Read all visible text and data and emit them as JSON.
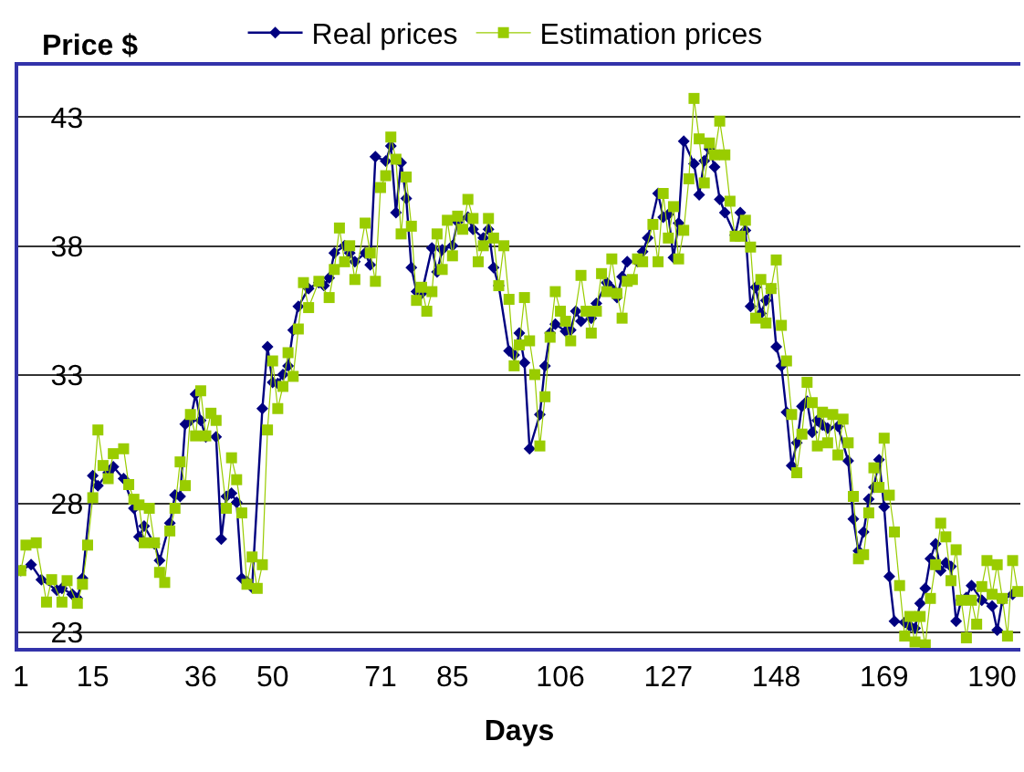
{
  "chart_data": {
    "type": "line",
    "xlabel": "Days",
    "ylabel": "Price $",
    "xlim": [
      0.5,
      195.5
    ],
    "xticks": [
      1,
      15,
      36,
      50,
      71,
      85,
      106,
      127,
      148,
      169,
      190
    ],
    "ylim": [
      22.4,
      45
    ],
    "yticks": [
      23,
      28,
      33,
      38,
      43
    ],
    "grid": "y",
    "legend": "top",
    "series": [
      {
        "name": "Real prices",
        "color": "#000080",
        "marker": "diamond",
        "x": [
          1,
          3,
          5,
          8,
          9,
          11,
          12,
          13,
          15,
          16,
          18,
          19,
          21,
          23,
          24,
          25,
          27,
          28,
          30,
          31,
          32,
          33,
          34,
          35,
          36,
          37,
          39,
          40,
          41,
          42,
          43,
          44,
          45,
          46,
          48,
          49,
          50,
          51,
          52,
          53,
          54,
          55,
          57,
          59,
          60,
          61,
          62,
          64,
          65,
          66,
          68,
          69,
          70,
          72,
          73,
          74,
          75,
          76,
          77,
          78,
          79,
          81,
          82,
          83,
          85,
          86,
          88,
          89,
          91,
          92,
          93,
          94,
          96,
          97,
          98,
          99,
          100,
          102,
          103,
          104,
          105,
          107,
          108,
          109,
          110,
          112,
          113,
          115,
          116,
          117,
          118,
          119,
          121,
          122,
          123,
          125,
          126,
          127,
          128,
          129,
          130,
          132,
          133,
          134,
          135,
          136,
          137,
          138,
          140,
          141,
          142,
          143,
          144,
          145,
          146,
          147,
          148,
          149,
          150,
          151,
          152,
          153,
          154,
          155,
          156,
          157,
          158,
          160,
          162,
          163,
          164,
          165,
          166,
          167,
          168,
          169,
          170,
          171,
          173,
          174,
          175,
          176,
          177,
          178,
          179,
          180,
          181,
          182,
          183,
          184,
          185,
          186,
          188,
          190,
          191,
          192,
          194
        ],
        "values": [
          25.4,
          25.63,
          25.05,
          24.64,
          24.71,
          24.48,
          24.32,
          25.1,
          29.09,
          28.7,
          29.2,
          29.43,
          28.97,
          27.82,
          26.71,
          27.13,
          26.44,
          25.79,
          27.24,
          28.33,
          28.28,
          31.09,
          31.23,
          32.25,
          31.23,
          30.59,
          30.59,
          26.62,
          28.28,
          28.4,
          28.05,
          25.1,
          24.98,
          24.75,
          31.69,
          34.09,
          32.71,
          32.66,
          33.01,
          33.35,
          34.74,
          35.66,
          36.35,
          36.58,
          36.46,
          36.76,
          37.73,
          38.01,
          37.73,
          37.39,
          37.73,
          37.27,
          41.47,
          41.3,
          41.88,
          39.3,
          41.24,
          39.85,
          37.16,
          36.23,
          36.16,
          37.92,
          36.99,
          37.85,
          38.01,
          38.93,
          39.12,
          38.65,
          38.31,
          38.65,
          37.16,
          36.46,
          33.93,
          33.77,
          34.62,
          33.47,
          30.13,
          31.46,
          33.35,
          34.62,
          34.97,
          34.69,
          34.74,
          35.47,
          35.08,
          35.2,
          35.77,
          36.58,
          36.35,
          36.0,
          36.81,
          37.39,
          37.39,
          37.78,
          38.31,
          40.04,
          39.12,
          39.23,
          37.55,
          38.89,
          42.07,
          41.19,
          39.99,
          41.31,
          41.77,
          41.07,
          39.81,
          39.3,
          38.42,
          39.3,
          38.61,
          35.66,
          36.4,
          35.38,
          35.89,
          36.35,
          34.09,
          33.35,
          31.55,
          29.48,
          30.36,
          31.78,
          31.97,
          30.77,
          31.23,
          31.05,
          30.93,
          31.0,
          29.66,
          27.4,
          26.16,
          26.9,
          28.17,
          28.63,
          29.71,
          27.87,
          25.17,
          23.44,
          23.39,
          23.25,
          23.16,
          24.13,
          24.71,
          25.86,
          26.44,
          25.4,
          25.7,
          25.56,
          23.44,
          24.25,
          24.36,
          24.82,
          24.25,
          24.02,
          23.09,
          24.25,
          24.48
        ]
      },
      {
        "name": "Estimation prices",
        "color": "#99cc00",
        "marker": "square",
        "x": [
          1,
          2,
          4,
          6,
          7,
          9,
          10,
          12,
          13,
          14,
          15,
          16,
          17,
          18,
          19,
          21,
          22,
          23,
          24,
          25,
          26,
          27,
          28,
          29,
          30,
          31,
          32,
          33,
          34,
          35,
          36,
          37,
          38,
          39,
          41,
          42,
          43,
          44,
          45,
          46,
          47,
          48,
          49,
          50,
          51,
          52,
          53,
          54,
          55,
          56,
          57,
          59,
          61,
          62,
          63,
          64,
          65,
          66,
          68,
          69,
          70,
          71,
          72,
          73,
          74,
          75,
          76,
          77,
          78,
          79,
          80,
          81,
          82,
          83,
          84,
          85,
          86,
          87,
          88,
          89,
          90,
          91,
          92,
          93,
          94,
          95,
          96,
          97,
          98,
          99,
          100,
          101,
          102,
          103,
          104,
          105,
          106,
          107,
          108,
          110,
          111,
          112,
          113,
          114,
          115,
          116,
          117,
          118,
          119,
          120,
          121,
          122,
          124,
          125,
          126,
          127,
          128,
          129,
          130,
          131,
          132,
          133,
          134,
          135,
          136,
          137,
          138,
          139,
          140,
          141,
          142,
          143,
          144,
          145,
          146,
          147,
          148,
          149,
          150,
          151,
          152,
          153,
          154,
          155,
          156,
          157,
          158,
          159,
          160,
          161,
          162,
          163,
          164,
          165,
          166,
          167,
          168,
          169,
          170,
          171,
          172,
          173,
          174,
          175,
          176,
          177,
          178,
          179,
          180,
          181,
          182,
          183,
          184,
          185,
          186,
          187,
          188,
          189,
          190,
          191,
          192,
          193,
          194,
          195
        ],
        "values": [
          25.4,
          26.39,
          26.48,
          24.18,
          25.05,
          24.18,
          25.01,
          24.13,
          24.87,
          26.39,
          28.23,
          30.86,
          29.48,
          28.97,
          29.94,
          30.13,
          28.74,
          28.17,
          27.95,
          26.48,
          27.82,
          26.48,
          25.33,
          24.94,
          26.94,
          27.82,
          29.62,
          28.7,
          31.46,
          30.63,
          32.38,
          30.63,
          31.51,
          31.23,
          27.82,
          29.78,
          28.93,
          27.64,
          24.87,
          25.93,
          24.71,
          25.63,
          30.86,
          33.54,
          31.69,
          32.55,
          33.86,
          32.94,
          34.78,
          36.58,
          35.61,
          36.63,
          36.0,
          37.09,
          38.7,
          37.39,
          38.01,
          36.7,
          38.89,
          37.73,
          36.63,
          40.27,
          40.73,
          42.23,
          41.37,
          38.47,
          40.68,
          38.77,
          35.89,
          36.4,
          35.47,
          36.23,
          38.47,
          37.09,
          39.0,
          37.62,
          39.16,
          38.65,
          39.81,
          39.07,
          37.39,
          38.01,
          39.07,
          38.31,
          36.46,
          38.01,
          35.93,
          33.35,
          34.16,
          36.0,
          34.32,
          33.01,
          30.24,
          32.15,
          34.46,
          36.23,
          35.47,
          35.08,
          34.32,
          36.86,
          35.47,
          34.62,
          35.47,
          36.93,
          36.23,
          37.5,
          36.16,
          35.2,
          36.63,
          36.7,
          37.5,
          37.39,
          38.84,
          37.39,
          40.04,
          38.31,
          39.53,
          37.5,
          38.61,
          40.61,
          43.73,
          42.16,
          40.45,
          42.0,
          41.54,
          42.85,
          41.54,
          39.74,
          38.38,
          38.38,
          39.0,
          37.96,
          35.2,
          36.7,
          35.01,
          36.35,
          37.46,
          34.92,
          33.54,
          31.46,
          29.2,
          30.7,
          32.71,
          31.92,
          30.24,
          31.55,
          30.36,
          31.46,
          29.89,
          31.28,
          30.36,
          28.28,
          25.86,
          26.02,
          27.64,
          29.39,
          28.63,
          30.54,
          28.33,
          26.9,
          24.82,
          22.86,
          23.62,
          22.63,
          23.62,
          22.52,
          24.32,
          25.63,
          27.24,
          26.71,
          25.01,
          26.21,
          24.25,
          22.79,
          24.25,
          23.32,
          24.78,
          25.79,
          24.48,
          25.63,
          24.32,
          22.86,
          25.79,
          24.59
        ]
      }
    ]
  }
}
